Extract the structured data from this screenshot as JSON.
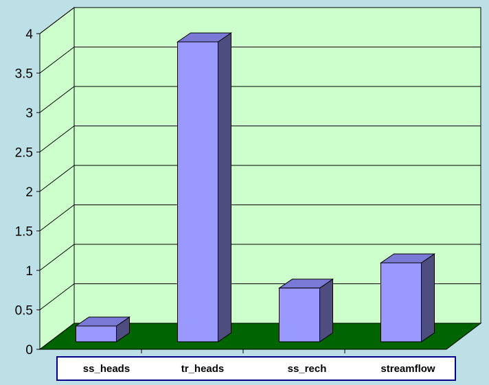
{
  "chart_data": {
    "type": "bar",
    "categories": [
      "ss_heads",
      "tr_heads",
      "ss_rech",
      "streamflow"
    ],
    "values": [
      0.2,
      3.8,
      0.68,
      1.0
    ],
    "ylim": [
      0,
      4
    ],
    "yticks": [
      0,
      0.5,
      1,
      1.5,
      2,
      2.5,
      3,
      3.5,
      4
    ],
    "xlabel": "",
    "ylabel": "",
    "grid": true,
    "style": "3d",
    "colors": {
      "background": "#bde0e6",
      "wall": "#ccffcc",
      "floor": "#006400",
      "bar_front": "#9999ff",
      "bar_top": "#7a7ad6",
      "bar_side": "#4d4d80",
      "gridline": "#000000",
      "category_box_border": "#00008b"
    }
  }
}
